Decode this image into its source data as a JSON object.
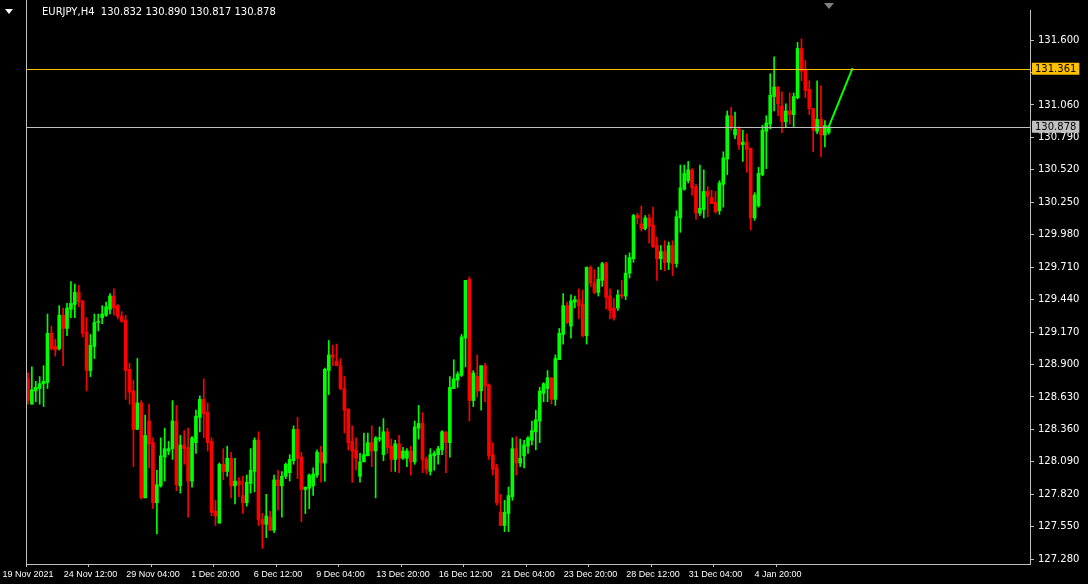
{
  "chart_data": {
    "type": "candlestick",
    "title": "EURJPY,H4  130.832 130.890 130.817 130.878",
    "categories": [
      "19 Nov 2021",
      null,
      null,
      null,
      null,
      null,
      null,
      null,
      null,
      null,
      null,
      null,
      null,
      null,
      null,
      null,
      "24 Nov 12:00",
      null,
      null,
      null,
      null,
      null,
      null,
      null,
      null,
      null,
      null,
      null,
      null,
      null,
      null,
      null,
      "29 Nov 04:00",
      null,
      null,
      null,
      null,
      null,
      null,
      null,
      null,
      null,
      null,
      null,
      null,
      null,
      null,
      null,
      "1 Dec 20:00",
      null,
      null,
      null,
      null,
      null,
      null,
      null,
      null,
      null,
      null,
      null,
      null,
      null,
      null,
      null,
      "6 Dec 12:00",
      null,
      null,
      null,
      null,
      null,
      null,
      null,
      null,
      null,
      null,
      null,
      null,
      null,
      null,
      null,
      "9 Dec 04:00",
      null,
      null,
      null,
      null,
      null,
      null,
      null,
      null,
      null,
      null,
      null,
      null,
      null,
      null,
      null,
      "13 Dec 20:00",
      null,
      null,
      null,
      null,
      null,
      null,
      null,
      null,
      null,
      null,
      null,
      null,
      null,
      null,
      null,
      "16 Dec 12:00",
      null,
      null,
      null,
      null,
      null,
      null,
      null,
      null,
      null,
      null,
      null,
      null,
      null,
      null,
      null,
      "21 Dec 04:00",
      null,
      null,
      null,
      null,
      null,
      null,
      null,
      null,
      null,
      null,
      null,
      null,
      null,
      null,
      null,
      "23 Dec 20:00",
      null,
      null,
      null,
      null,
      null,
      null,
      null,
      null,
      null,
      null,
      null,
      null,
      null,
      null,
      null,
      "28 Dec 12:00",
      null,
      null,
      null,
      null,
      null,
      null,
      null,
      null,
      null,
      null,
      null,
      null,
      null,
      null,
      null,
      "31 Dec 04:00",
      null,
      null,
      null,
      null,
      null,
      null,
      null,
      null,
      null,
      null,
      null,
      null,
      null,
      null,
      null,
      "4 Jan 20:00",
      null,
      null,
      null,
      null,
      null,
      null,
      null,
      null,
      null,
      null,
      null,
      null,
      null,
      null,
      null,
      null,
      null,
      null,
      null,
      null,
      null,
      null,
      null,
      null,
      null,
      null,
      null,
      null,
      null,
      null,
      null,
      null,
      null,
      null,
      null,
      null,
      null,
      null,
      null,
      null,
      null,
      null,
      null,
      null,
      null,
      null,
      null,
      null,
      null,
      null,
      null,
      null,
      null,
      null,
      null,
      null,
      null,
      null,
      null,
      null,
      null,
      null,
      null,
      null
    ],
    "ohlc": [
      [
        128.78,
        128.83,
        128.57,
        128.6
      ],
      [
        128.57,
        128.88,
        128.57,
        128.69
      ],
      [
        128.68,
        128.76,
        128.59,
        128.71
      ],
      [
        128.7,
        128.8,
        128.57,
        128.74
      ],
      [
        128.74,
        128.89,
        128.55,
        128.76
      ],
      [
        128.75,
        129.32,
        128.7,
        129.16
      ],
      [
        129.16,
        129.22,
        129.02,
        129.03
      ],
      [
        129.05,
        129.11,
        128.97,
        129.02
      ],
      [
        129.03,
        129.39,
        129.02,
        129.31
      ],
      [
        129.31,
        129.37,
        128.89,
        129.2
      ],
      [
        129.2,
        129.41,
        129.14,
        129.37
      ],
      [
        129.36,
        129.59,
        129.29,
        129.41
      ],
      [
        129.4,
        129.57,
        129.29,
        129.5
      ],
      [
        129.5,
        129.56,
        129.38,
        129.42
      ],
      [
        129.43,
        129.43,
        129.13,
        129.16
      ],
      [
        129.17,
        129.29,
        128.68,
        128.85
      ],
      [
        128.85,
        129.15,
        128.8,
        129.06
      ],
      [
        129.05,
        129.32,
        128.95,
        129.25
      ],
      [
        129.25,
        129.32,
        129.18,
        129.26
      ],
      [
        129.29,
        129.39,
        129.24,
        129.32
      ],
      [
        129.31,
        129.42,
        129.3,
        129.38
      ],
      [
        129.36,
        129.49,
        129.32,
        129.47
      ],
      [
        129.47,
        129.53,
        129.31,
        129.37
      ],
      [
        129.39,
        129.4,
        129.28,
        129.3
      ],
      [
        129.3,
        129.34,
        129.25,
        129.26
      ],
      [
        129.27,
        129.31,
        128.61,
        128.85
      ],
      [
        128.86,
        128.91,
        128.57,
        128.67
      ],
      [
        128.68,
        128.77,
        128.05,
        128.36
      ],
      [
        128.36,
        128.95,
        128.36,
        128.58
      ],
      [
        128.58,
        128.6,
        127.78,
        127.79
      ],
      [
        127.79,
        128.48,
        127.79,
        128.31
      ],
      [
        128.43,
        128.57,
        128.04,
        128.24
      ],
      [
        128.25,
        128.29,
        127.7,
        127.75
      ],
      [
        127.75,
        128.02,
        127.49,
        127.9
      ],
      [
        127.89,
        128.29,
        127.88,
        128.14
      ],
      [
        128.13,
        128.37,
        127.93,
        128.2
      ],
      [
        128.18,
        128.26,
        128.15,
        128.2
      ],
      [
        128.2,
        128.6,
        128.11,
        128.43
      ],
      [
        128.43,
        128.56,
        127.85,
        127.9
      ],
      [
        127.89,
        128.31,
        127.83,
        128.23
      ],
      [
        128.23,
        128.35,
        128.07,
        128.2
      ],
      [
        128.21,
        128.37,
        127.63,
        127.93
      ],
      [
        127.93,
        128.3,
        127.88,
        128.29
      ],
      [
        128.25,
        128.52,
        128.16,
        128.47
      ],
      [
        128.46,
        128.64,
        128.34,
        128.61
      ],
      [
        128.61,
        128.78,
        128.29,
        128.49
      ],
      [
        128.5,
        128.58,
        128.18,
        128.25
      ],
      [
        128.26,
        128.29,
        127.64,
        127.67
      ],
      [
        127.68,
        127.77,
        127.56,
        127.64
      ],
      [
        127.58,
        128.08,
        127.58,
        128.07
      ],
      [
        128.07,
        128.2,
        127.94,
        128.01
      ],
      [
        128.01,
        128.22,
        127.97,
        128.12
      ],
      [
        128.12,
        128.17,
        127.79,
        127.89
      ],
      [
        127.89,
        128.12,
        127.74,
        127.93
      ],
      [
        127.93,
        127.96,
        127.8,
        127.9
      ],
      [
        127.81,
        127.97,
        127.66,
        127.75
      ],
      [
        127.75,
        127.98,
        127.72,
        127.92
      ],
      [
        127.91,
        128.2,
        127.83,
        128.02
      ],
      [
        128.01,
        128.29,
        127.84,
        128.27
      ],
      [
        128.27,
        128.34,
        127.56,
        127.61
      ],
      [
        127.61,
        127.66,
        127.37,
        127.57
      ],
      [
        127.57,
        127.82,
        127.46,
        127.64
      ],
      [
        127.63,
        127.68,
        127.52,
        127.52
      ],
      [
        127.52,
        127.98,
        127.5,
        127.94
      ],
      [
        127.94,
        128.02,
        127.69,
        127.89
      ],
      [
        127.89,
        128.01,
        127.63,
        127.97
      ],
      [
        127.97,
        128.08,
        127.95,
        128.07
      ],
      [
        128.0,
        128.15,
        127.93,
        128.11
      ],
      [
        128.1,
        128.39,
        128.07,
        128.36
      ],
      [
        128.36,
        128.46,
        127.95,
        128.12
      ],
      [
        128.13,
        128.17,
        127.59,
        127.86
      ],
      [
        127.86,
        127.88,
        127.66,
        127.88
      ],
      [
        127.87,
        127.99,
        127.7,
        127.98
      ],
      [
        127.89,
        128.04,
        127.81,
        127.99
      ],
      [
        127.98,
        128.19,
        127.96,
        128.17
      ],
      [
        128.17,
        128.22,
        127.92,
        128.08
      ],
      [
        128.08,
        128.87,
        127.93,
        128.86
      ],
      [
        128.85,
        129.1,
        128.65,
        128.98
      ],
      [
        128.98,
        129.06,
        128.89,
        128.96
      ],
      [
        128.93,
        129.07,
        128.89,
        128.89
      ],
      [
        128.89,
        128.95,
        128.69,
        128.7
      ],
      [
        128.7,
        128.8,
        128.33,
        128.52
      ],
      [
        128.53,
        128.53,
        128.19,
        128.25
      ],
      [
        128.26,
        128.39,
        127.92,
        128.18
      ],
      [
        128.19,
        128.29,
        128.02,
        128.12
      ],
      [
        127.97,
        128.16,
        127.92,
        128.09
      ],
      [
        128.09,
        128.33,
        128.09,
        128.15
      ],
      [
        128.14,
        128.33,
        128.14,
        128.25
      ],
      [
        128.25,
        128.39,
        128.05,
        128.18
      ],
      [
        128.18,
        128.3,
        127.79,
        128.29
      ],
      [
        128.28,
        128.38,
        128.26,
        128.29
      ],
      [
        128.15,
        128.45,
        128.1,
        128.34
      ],
      [
        128.34,
        128.37,
        128.16,
        128.21
      ],
      [
        128.22,
        128.28,
        128.01,
        128.11
      ],
      [
        128.11,
        128.27,
        128.01,
        128.24
      ],
      [
        128.24,
        128.31,
        128.0,
        128.12
      ],
      [
        128.12,
        128.21,
        128.11,
        128.18
      ],
      [
        128.12,
        128.2,
        128.05,
        128.18
      ],
      [
        128.18,
        128.22,
        127.98,
        128.09
      ],
      [
        128.09,
        128.43,
        128.07,
        128.38
      ],
      [
        128.37,
        128.56,
        128.28,
        128.41
      ],
      [
        128.41,
        128.5,
        128.0,
        128.11
      ],
      [
        128.11,
        128.13,
        127.99,
        128.03
      ],
      [
        128.01,
        128.2,
        127.98,
        128.15
      ],
      [
        128.14,
        128.18,
        128.02,
        128.16
      ],
      [
        128.15,
        128.22,
        128.07,
        128.2
      ],
      [
        128.19,
        128.35,
        128.15,
        128.34
      ],
      [
        128.34,
        128.34,
        128.0,
        128.25
      ],
      [
        128.25,
        128.8,
        128.13,
        128.71
      ],
      [
        128.7,
        128.94,
        128.7,
        128.78
      ],
      [
        128.77,
        128.84,
        128.71,
        128.82
      ],
      [
        128.81,
        129.15,
        128.8,
        129.13
      ],
      [
        129.12,
        129.6,
        128.88,
        129.6
      ],
      [
        129.61,
        129.63,
        128.43,
        128.6
      ],
      [
        128.6,
        128.85,
        128.55,
        128.83
      ],
      [
        128.8,
        128.98,
        128.63,
        128.68
      ],
      [
        128.68,
        128.89,
        128.52,
        128.89
      ],
      [
        128.89,
        128.91,
        128.59,
        128.72
      ],
      [
        128.73,
        128.74,
        128.11,
        128.14
      ],
      [
        128.15,
        128.25,
        127.98,
        128.03
      ],
      [
        128.04,
        128.07,
        127.73,
        127.75
      ],
      [
        127.67,
        127.82,
        127.56,
        127.56
      ],
      [
        127.56,
        127.77,
        127.51,
        127.67
      ],
      [
        127.66,
        127.88,
        127.51,
        127.81
      ],
      [
        127.8,
        128.29,
        127.77,
        128.2
      ],
      [
        128.2,
        128.3,
        127.98,
        128.08
      ],
      [
        128.08,
        128.28,
        128.05,
        128.12
      ],
      [
        128.14,
        128.27,
        128.04,
        128.23
      ],
      [
        128.22,
        128.3,
        128.16,
        128.29
      ],
      [
        128.27,
        128.43,
        128.23,
        128.35
      ],
      [
        128.34,
        128.52,
        128.19,
        128.44
      ],
      [
        128.43,
        128.71,
        128.25,
        128.68
      ],
      [
        128.66,
        128.75,
        128.59,
        128.74
      ],
      [
        128.7,
        128.85,
        128.59,
        128.79
      ],
      [
        128.79,
        128.79,
        128.57,
        128.61
      ],
      [
        128.61,
        128.98,
        128.56,
        128.95
      ],
      [
        128.94,
        129.2,
        128.94,
        129.16
      ],
      [
        129.15,
        129.49,
        129.07,
        129.39
      ],
      [
        129.39,
        129.42,
        129.24,
        129.25
      ],
      [
        129.22,
        129.48,
        129.12,
        129.43
      ],
      [
        129.42,
        129.47,
        129.37,
        129.44
      ],
      [
        129.44,
        129.53,
        129.28,
        129.39
      ],
      [
        129.4,
        129.52,
        129.13,
        129.14
      ],
      [
        129.14,
        129.71,
        129.07,
        129.71
      ],
      [
        129.71,
        129.72,
        129.55,
        129.58
      ],
      [
        129.58,
        129.69,
        129.49,
        129.5
      ],
      [
        129.5,
        129.71,
        129.47,
        129.61
      ],
      [
        129.6,
        129.75,
        129.55,
        129.74
      ],
      [
        129.74,
        129.75,
        129.36,
        129.46
      ],
      [
        129.47,
        129.53,
        129.28,
        129.35
      ],
      [
        129.37,
        129.45,
        129.27,
        129.29
      ],
      [
        129.37,
        129.52,
        129.35,
        129.48
      ],
      [
        129.48,
        129.6,
        129.45,
        129.47
      ],
      [
        129.47,
        129.81,
        129.44,
        129.66
      ],
      [
        129.66,
        129.83,
        129.62,
        129.79
      ],
      [
        129.78,
        130.15,
        129.75,
        130.14
      ],
      [
        130.14,
        130.16,
        130.07,
        130.12
      ],
      [
        130.07,
        130.22,
        130.01,
        130.03
      ],
      [
        130.03,
        130.14,
        130.02,
        130.12
      ],
      [
        130.12,
        130.15,
        129.91,
        130.05
      ],
      [
        130.06,
        130.21,
        129.87,
        129.88
      ],
      [
        129.89,
        129.96,
        129.6,
        129.78
      ],
      [
        129.78,
        129.89,
        129.69,
        129.84
      ],
      [
        129.84,
        129.93,
        129.68,
        129.75
      ],
      [
        129.75,
        129.92,
        129.69,
        129.89
      ],
      [
        129.89,
        129.93,
        129.64,
        129.74
      ],
      [
        129.74,
        130.18,
        129.71,
        130.13
      ],
      [
        130.12,
        130.56,
        130.0,
        130.37
      ],
      [
        130.36,
        130.56,
        130.35,
        130.49
      ],
      [
        130.43,
        130.59,
        130.41,
        130.52
      ],
      [
        130.52,
        130.53,
        130.31,
        130.37
      ],
      [
        130.38,
        130.4,
        130.11,
        130.16
      ],
      [
        130.16,
        130.56,
        130.14,
        130.2
      ],
      [
        130.19,
        130.52,
        130.12,
        130.34
      ],
      [
        130.34,
        130.38,
        130.13,
        130.3
      ],
      [
        130.29,
        130.35,
        130.24,
        130.24
      ],
      [
        130.25,
        130.34,
        130.16,
        130.17
      ],
      [
        130.18,
        130.43,
        130.15,
        130.41
      ],
      [
        130.4,
        130.67,
        130.21,
        130.62
      ],
      [
        130.61,
        131.01,
        130.48,
        130.97
      ],
      [
        130.97,
        131.04,
        130.85,
        130.87
      ],
      [
        130.81,
        131.0,
        130.78,
        130.86
      ],
      [
        130.86,
        130.88,
        130.69,
        130.73
      ],
      [
        130.73,
        130.85,
        130.59,
        130.75
      ],
      [
        130.75,
        130.82,
        130.5,
        130.69
      ],
      [
        130.7,
        130.7,
        130.02,
        130.12
      ],
      [
        130.12,
        130.33,
        130.1,
        130.31
      ],
      [
        130.22,
        130.54,
        130.21,
        130.49
      ],
      [
        130.48,
        130.89,
        130.47,
        130.85
      ],
      [
        130.84,
        130.97,
        130.53,
        130.91
      ],
      [
        130.9,
        131.32,
        130.86,
        131.14
      ],
      [
        131.13,
        131.46,
        131.01,
        131.21
      ],
      [
        131.21,
        131.21,
        130.97,
        131.07
      ],
      [
        131.05,
        131.17,
        130.83,
        130.92
      ],
      [
        130.92,
        131.07,
        130.88,
        131.01
      ],
      [
        131.01,
        131.16,
        130.9,
        130.98
      ],
      [
        130.98,
        131.16,
        130.88,
        131.13
      ],
      [
        131.12,
        131.58,
        131.11,
        131.53
      ],
      [
        131.53,
        131.61,
        131.26,
        131.34
      ],
      [
        131.35,
        131.43,
        131.12,
        131.18
      ],
      [
        131.19,
        131.26,
        130.98,
        131.03
      ],
      [
        131.03,
        131.03,
        130.67,
        130.85
      ],
      [
        130.84,
        131.26,
        130.82,
        130.94
      ],
      [
        130.94,
        131.22,
        130.63,
        130.81
      ],
      [
        130.81,
        130.93,
        130.71,
        130.89
      ],
      [
        130.832,
        130.89,
        130.817,
        130.878
      ],
      null,
      null,
      null,
      null,
      null,
      null,
      null,
      null,
      null,
      null,
      null,
      null,
      null,
      null,
      null,
      null,
      null,
      null,
      null,
      null,
      null,
      null,
      null,
      null,
      null,
      null,
      null,
      null,
      null,
      null,
      null,
      null,
      null,
      null,
      null,
      null,
      null,
      null,
      null,
      null,
      null,
      null,
      null,
      null,
      null,
      null,
      null,
      null,
      null,
      null,
      null
    ],
    "colors": [
      "#ff0000",
      "#00ff00",
      "#00ff00",
      "#00ff00",
      "#00ff00",
      "#00ff00",
      "#ff0000",
      "#ff0000",
      "#00ff00",
      "#ff0000",
      "#00ff00",
      "#00ff00",
      "#00ff00",
      "#ff0000",
      "#ff0000",
      "#ff0000",
      "#00ff00",
      "#00ff00",
      "#00ff00",
      "#00ff00",
      "#00ff00",
      "#00ff00",
      "#ff0000",
      "#ff0000",
      "#ff0000",
      "#ff0000",
      "#ff0000",
      "#ff0000",
      "#00ff00",
      "#ff0000",
      "#00ff00",
      "#ff0000",
      "#ff0000",
      "#00ff00",
      "#00ff00",
      "#00ff00",
      "#00ff00",
      "#00ff00",
      "#ff0000",
      "#00ff00",
      "#ff0000",
      "#ff0000",
      "#00ff00",
      "#00ff00",
      "#00ff00",
      "#ff0000",
      "#ff0000",
      "#ff0000",
      "#ff0000",
      "#00ff00",
      "#ff0000",
      "#00ff00",
      "#ff0000",
      "#00ff00",
      "#ff0000",
      "#ff0000",
      "#00ff00",
      "#00ff00",
      "#00ff00",
      "#ff0000",
      "#ff0000",
      "#00ff00",
      "#ff0000",
      "#00ff00",
      "#ff0000",
      "#00ff00",
      "#00ff00",
      "#00ff00",
      "#00ff00",
      "#ff0000",
      "#ff0000",
      "#00ff00",
      "#00ff00",
      "#00ff00",
      "#00ff00",
      "#ff0000",
      "#00ff00",
      "#00ff00",
      "#ff0000",
      "#ff0000",
      "#ff0000",
      "#ff0000",
      "#ff0000",
      "#ff0000",
      "#ff0000",
      "#00ff00",
      "#00ff00",
      "#00ff00",
      "#ff0000",
      "#00ff00",
      "#00ff00",
      "#00ff00",
      "#ff0000",
      "#ff0000",
      "#00ff00",
      "#ff0000",
      "#00ff00",
      "#00ff00",
      "#ff0000",
      "#00ff00",
      "#00ff00",
      "#ff0000",
      "#ff0000",
      "#00ff00",
      "#00ff00",
      "#00ff00",
      "#00ff00",
      "#ff0000",
      "#00ff00",
      "#00ff00",
      "#00ff00",
      "#00ff00",
      "#00ff00",
      "#ff0000",
      "#00ff00",
      "#ff0000",
      "#00ff00",
      "#ff0000",
      "#ff0000",
      "#ff0000",
      "#ff0000",
      "#ff0000",
      "#00ff00",
      "#00ff00",
      "#00ff00",
      "#ff0000",
      "#00ff00",
      "#00ff00",
      "#00ff00",
      "#00ff00",
      "#00ff00",
      "#00ff00",
      "#00ff00",
      "#00ff00",
      "#ff0000",
      "#00ff00",
      "#00ff00",
      "#00ff00",
      "#ff0000",
      "#00ff00",
      "#00ff00",
      "#ff0000",
      "#ff0000",
      "#00ff00",
      "#ff0000",
      "#ff0000",
      "#00ff00",
      "#00ff00",
      "#ff0000",
      "#ff0000",
      "#ff0000",
      "#00ff00",
      "#ff0000",
      "#00ff00",
      "#00ff00",
      "#00ff00",
      "#ff0000",
      "#ff0000",
      "#00ff00",
      "#ff0000",
      "#ff0000",
      "#ff0000",
      "#00ff00",
      "#ff0000",
      "#00ff00",
      "#ff0000",
      "#00ff00",
      "#00ff00",
      "#00ff00",
      "#00ff00",
      "#ff0000",
      "#ff0000",
      "#00ff00",
      "#00ff00",
      "#ff0000",
      "#ff0000",
      "#ff0000",
      "#00ff00",
      "#00ff00",
      "#00ff00",
      "#ff0000",
      "#00ff00",
      "#ff0000",
      "#00ff00",
      "#ff0000",
      "#ff0000",
      "#00ff00",
      "#00ff00",
      "#00ff00",
      "#00ff00",
      "#00ff00",
      "#00ff00",
      "#ff0000",
      "#ff0000",
      "#00ff00",
      "#ff0000",
      "#00ff00",
      "#00ff00",
      "#ff0000",
      "#ff0000",
      "#ff0000",
      "#ff0000",
      "#00ff00",
      "#ff0000",
      "#00ff00",
      "#00ff00",
      null,
      null,
      null,
      null,
      null,
      null,
      null,
      null,
      null,
      null,
      null,
      null,
      null,
      null,
      null,
      null,
      null,
      null,
      null,
      null,
      null,
      null,
      null,
      null,
      null,
      null,
      null,
      null,
      null,
      null,
      null,
      null,
      null,
      null,
      null,
      null,
      null,
      null,
      null,
      null,
      null,
      null,
      null,
      null,
      null,
      null,
      null,
      null,
      null,
      null,
      null
    ],
    "series": [
      {
        "type": "line",
        "color": "#00ff00",
        "values": [
          null,
          null,
          null,
          null,
          null,
          null,
          null,
          null,
          null,
          null,
          null,
          null,
          null,
          null,
          null,
          null,
          null,
          null,
          null,
          null,
          null,
          null,
          null,
          null,
          null,
          null,
          null,
          null,
          null,
          null,
          null,
          null,
          null,
          null,
          null,
          null,
          null,
          null,
          null,
          null,
          null,
          null,
          null,
          null,
          null,
          null,
          null,
          null,
          null,
          null,
          null,
          null,
          null,
          null,
          null,
          null,
          null,
          null,
          null,
          null,
          null,
          null,
          null,
          null,
          null,
          null,
          null,
          null,
          null,
          null,
          null,
          null,
          null,
          null,
          null,
          null,
          null,
          null,
          null,
          null,
          null,
          null,
          null,
          null,
          null,
          null,
          null,
          null,
          null,
          null,
          null,
          null,
          null,
          null,
          null,
          null,
          null,
          null,
          null,
          null,
          null,
          null,
          null,
          null,
          null,
          null,
          null,
          null,
          null,
          null,
          null,
          null,
          null,
          null,
          null,
          null,
          null,
          null,
          null,
          null,
          null,
          null,
          null,
          null,
          null,
          null,
          null,
          null,
          null,
          null,
          null,
          null,
          null,
          null,
          null,
          null,
          null,
          null,
          null,
          null,
          null,
          null,
          null,
          null,
          null,
          null,
          null,
          null,
          null,
          null,
          null,
          null,
          null,
          null,
          null,
          null,
          null,
          null,
          null,
          null,
          null,
          null,
          null,
          null,
          null,
          null,
          null,
          null,
          null,
          null,
          null,
          null,
          null,
          null,
          null,
          null,
          null,
          null,
          null,
          null,
          null,
          null,
          null,
          null,
          null,
          null,
          null,
          null,
          null,
          null,
          null,
          null,
          null,
          null,
          null,
          null,
          null,
          null,
          null,
          null,
          null,
          null,
          null,
          null,
          null,
          130.88,
          null,
          null,
          null,
          null,
          null,
          131.36,
          null,
          null,
          null,
          null,
          null,
          null,
          null,
          null,
          null,
          null,
          null,
          null,
          null,
          null,
          null,
          null,
          null,
          null,
          null,
          null,
          null,
          null,
          null,
          null,
          null,
          null,
          null,
          null,
          null,
          null,
          null,
          null,
          null,
          null,
          null,
          null,
          null,
          null,
          null,
          null,
          null,
          null,
          null,
          null,
          null
        ]
      }
    ],
    "ylim": [
      127.24,
      131.85
    ],
    "yticks": [
      {
        "value": 127.28,
        "label": "127.280"
      },
      {
        "value": 127.55,
        "label": "127.550"
      },
      {
        "value": 127.82,
        "label": "127.820"
      },
      {
        "value": 128.09,
        "label": "128.090"
      },
      {
        "value": 128.36,
        "label": "128.360"
      },
      {
        "value": 128.63,
        "label": "128.630"
      },
      {
        "value": 128.9,
        "label": "128.900"
      },
      {
        "value": 129.17,
        "label": "129.170"
      },
      {
        "value": 129.44,
        "label": "129.440"
      },
      {
        "value": 129.71,
        "label": "129.710"
      },
      {
        "value": 129.98,
        "label": "129.980"
      },
      {
        "value": 130.25,
        "label": "130.250"
      },
      {
        "value": 130.52,
        "label": "130.520"
      },
      {
        "value": 130.79,
        "label": "130.790"
      },
      {
        "value": 131.06,
        "label": "131.060"
      },
      {
        "value": 131.33,
        "label": null
      },
      {
        "value": 131.6,
        "label": "131.600"
      }
    ],
    "ref_lines": [
      {
        "axis": "y",
        "value": 131.361,
        "label": "131.361",
        "color": "#ffc000"
      },
      {
        "axis": "y",
        "value": 130.878,
        "label": "130.878",
        "color": "#c0c0c0"
      }
    ]
  }
}
